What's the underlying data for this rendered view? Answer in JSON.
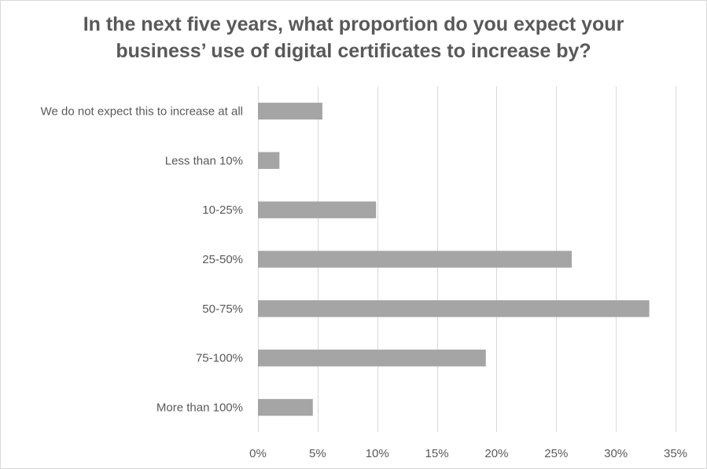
{
  "chart_data": {
    "type": "bar",
    "orientation": "horizontal",
    "title_lines": [
      "In the next five years, what proportion do you expect your",
      "business’ use of digital certificates to increase by?"
    ],
    "categories": [
      "We do not expect this to increase at all",
      "Less than 10%",
      "10-25%",
      "25-50%",
      "50-75%",
      "75-100%",
      "More than 100%"
    ],
    "values": [
      5.4,
      1.8,
      9.9,
      26.3,
      32.8,
      19.1,
      4.6
    ],
    "value_unit": "%",
    "xlim": [
      0,
      35
    ],
    "x_ticks": [
      0,
      5,
      10,
      15,
      20,
      25,
      30,
      35
    ],
    "x_tick_labels": [
      "0%",
      "5%",
      "10%",
      "15%",
      "20%",
      "25%",
      "30%",
      "35%"
    ],
    "grid": "vertical",
    "legend": "none",
    "bar_color": "#a5a5a5",
    "grid_color": "#d9d9d9"
  }
}
